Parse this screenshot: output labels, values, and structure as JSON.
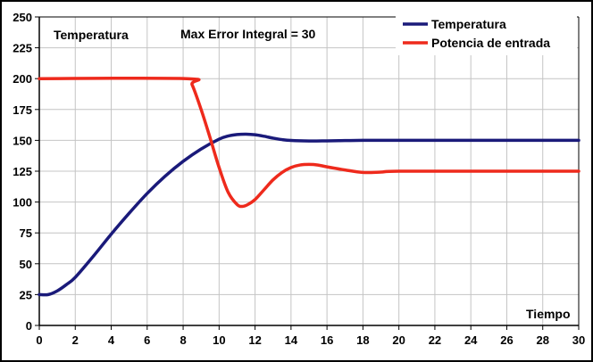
{
  "chart_data": {
    "type": "line",
    "title": "",
    "xlabel": "Tiempo",
    "ylabel": "Temperatura",
    "annotation": "Max Error Integral = 30",
    "xlim": [
      0,
      30
    ],
    "ylim": [
      0,
      250
    ],
    "x_ticks": [
      0,
      2,
      4,
      6,
      8,
      10,
      12,
      14,
      16,
      18,
      20,
      22,
      24,
      26,
      28,
      30
    ],
    "y_ticks": [
      0,
      25,
      50,
      75,
      100,
      125,
      150,
      175,
      200,
      225,
      250
    ],
    "grid": true,
    "legend_position": "top-right",
    "series": [
      {
        "name": "Temperatura",
        "color": "#1a1a7a",
        "points": [
          [
            0,
            25
          ],
          [
            0.5,
            25
          ],
          [
            1,
            28
          ],
          [
            1.5,
            33
          ],
          [
            2,
            39
          ],
          [
            3,
            56
          ],
          [
            4,
            74
          ],
          [
            5,
            91
          ],
          [
            6,
            107
          ],
          [
            7,
            121
          ],
          [
            8,
            133
          ],
          [
            9,
            143
          ],
          [
            10,
            151
          ],
          [
            10.5,
            153.5
          ],
          [
            11,
            154.7
          ],
          [
            11.5,
            155
          ],
          [
            12,
            154.5
          ],
          [
            12.5,
            153.3
          ],
          [
            13,
            151.8
          ],
          [
            13.5,
            150.6
          ],
          [
            14,
            149.9
          ],
          [
            15,
            149.5
          ],
          [
            16,
            149.6
          ],
          [
            17,
            149.8
          ],
          [
            18,
            150
          ],
          [
            20,
            150
          ],
          [
            25,
            150
          ],
          [
            30,
            150
          ]
        ]
      },
      {
        "name": "Potencia de entrada",
        "color": "#ee2a1c",
        "points": [
          [
            0,
            200
          ],
          [
            8.2,
            200
          ],
          [
            8.5,
            195
          ],
          [
            9,
            175
          ],
          [
            9.5,
            152
          ],
          [
            10,
            128
          ],
          [
            10.5,
            108
          ],
          [
            11,
            98
          ],
          [
            11.3,
            96.5
          ],
          [
            11.6,
            98
          ],
          [
            12,
            102
          ],
          [
            12.5,
            110
          ],
          [
            13,
            118
          ],
          [
            13.5,
            124
          ],
          [
            14,
            128
          ],
          [
            14.5,
            130
          ],
          [
            15,
            130.5
          ],
          [
            15.5,
            130
          ],
          [
            16,
            128.5
          ],
          [
            17,
            126
          ],
          [
            18,
            124
          ],
          [
            19,
            124.3
          ],
          [
            20,
            125
          ],
          [
            25,
            125
          ],
          [
            30,
            125
          ]
        ]
      }
    ]
  }
}
